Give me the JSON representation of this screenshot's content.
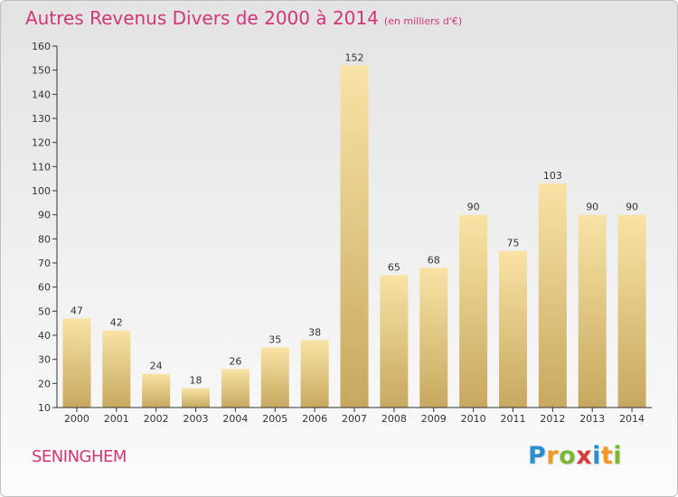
{
  "title": "Autres Revenus Divers de 2000 à 2014",
  "unit_note": "(en milliers d'€)",
  "town": "SENINGHEM",
  "logo": {
    "letters": [
      "P",
      "r",
      "o",
      "x",
      "i",
      "t",
      "i"
    ],
    "colors": [
      "#2a8fd1",
      "#f29a1f",
      "#7ab833",
      "#d93c3c",
      "#2a8fd1",
      "#f29a1f",
      "#7ab833"
    ]
  },
  "colors": {
    "title": "#d1357a",
    "bar_light": "#f7df9c",
    "bar_dark": "#c9ab63",
    "axis": "#333333",
    "grid": "#c8c8c8"
  },
  "chart_data": {
    "type": "bar",
    "categories": [
      "2000",
      "2001",
      "2002",
      "2003",
      "2004",
      "2005",
      "2006",
      "2007",
      "2008",
      "2009",
      "2010",
      "2011",
      "2012",
      "2013",
      "2014"
    ],
    "values": [
      47,
      42,
      24,
      18,
      26,
      35,
      38,
      152,
      65,
      68,
      90,
      75,
      103,
      90,
      90
    ],
    "ylim": [
      10,
      160
    ],
    "yticks": [
      10,
      20,
      30,
      40,
      50,
      60,
      70,
      80,
      90,
      100,
      110,
      120,
      130,
      140,
      150,
      160
    ],
    "grid": false,
    "data_labels": true
  }
}
